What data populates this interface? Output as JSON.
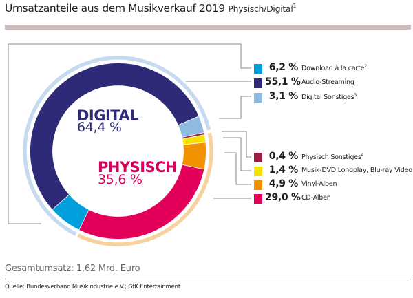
{
  "header": {
    "title": "Umsatzanteile aus dem Musikverkauf 2019",
    "subtitle": "Physisch/Digital",
    "subtitle_footnote": "1"
  },
  "footer": {
    "total": "Gesamtumsatz: 1,62 Mrd. Euro",
    "source": "Quelle: Bundesverband Musikindustrie e.V.; GfK Entertainment"
  },
  "chart_data": {
    "type": "pie",
    "variant": "donut",
    "title": "Umsatzanteile aus dem Musikverkauf 2019 Physisch/Digital",
    "unit": "%",
    "groups": [
      {
        "name": "DIGITAL",
        "value": 64.4,
        "value_label": "64,4 %",
        "color": "#2e2a78",
        "ring_color": "#c6dbf0",
        "segments": [
          {
            "label": "Download à la carte",
            "footnote": "2",
            "value": 6.2,
            "value_label": "6,2 %",
            "color": "#009fdb"
          },
          {
            "label": "Audio-Streaming",
            "footnote": "",
            "value": 55.1,
            "value_label": "55,1 %",
            "color": "#2e2a78"
          },
          {
            "label": "Digital Sonstiges",
            "footnote": "3",
            "value": 3.1,
            "value_label": "3,1 %",
            "color": "#8fbbe3"
          }
        ]
      },
      {
        "name": "PHYSISCH",
        "value": 35.6,
        "value_label": "35,6 %",
        "color": "#d9005b",
        "ring_color": "#f8d29e",
        "segments": [
          {
            "label": "Physisch Sonstiges",
            "footnote": "4",
            "value": 0.4,
            "value_label": "0,4 %",
            "color": "#9b1f44"
          },
          {
            "label": "Musik-DVD Longplay, Blu-ray Video",
            "footnote": "",
            "value": 1.4,
            "value_label": "1,4 %",
            "color": "#f6e200"
          },
          {
            "label": "Vinyl-Alben",
            "footnote": "",
            "value": 4.9,
            "value_label": "4,9 %",
            "color": "#f39200"
          },
          {
            "label": "CD-Alben",
            "footnote": "",
            "value": 29.0,
            "value_label": "29,0 %",
            "color": "#e2005a"
          }
        ]
      }
    ],
    "legend_placement": "right",
    "start_angle_deg": 206
  }
}
